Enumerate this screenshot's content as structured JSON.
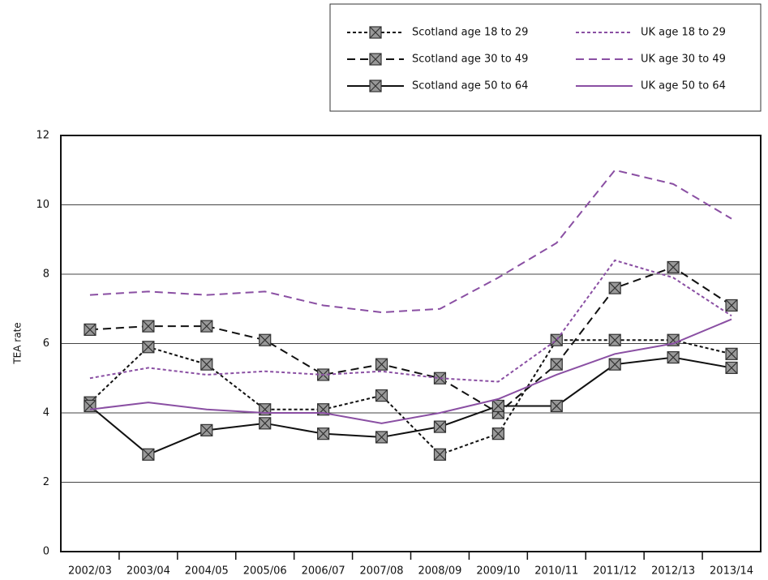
{
  "chart_data": {
    "type": "line",
    "y_label": "TEA rate",
    "categories": [
      "2002/03",
      "2003/04",
      "2004/05",
      "2005/06",
      "2006/07",
      "2007/08",
      "2008/09",
      "2009/10",
      "2010/11",
      "2011/12",
      "2012/13",
      "2013/14"
    ],
    "ylim": [
      0,
      12
    ],
    "yticks": [
      0,
      2,
      4,
      6,
      8,
      10,
      12
    ],
    "grid": true,
    "legend": "top-right",
    "series": [
      {
        "name": "Scotland age 18 to 29",
        "color": "#111111",
        "dash": "short",
        "marker": true,
        "values": [
          4.3,
          5.9,
          5.4,
          4.1,
          4.1,
          4.5,
          2.8,
          3.4,
          6.1,
          6.1,
          6.1,
          5.7
        ]
      },
      {
        "name": "Scotland age 30 to 49",
        "color": "#111111",
        "dash": "long",
        "marker": true,
        "values": [
          6.4,
          6.5,
          6.5,
          6.1,
          5.1,
          5.4,
          5.0,
          4.0,
          5.4,
          7.6,
          8.2,
          7.1
        ]
      },
      {
        "name": "Scotland age 50 to 64",
        "color": "#111111",
        "dash": "solid",
        "marker": true,
        "values": [
          4.2,
          2.8,
          3.5,
          3.7,
          3.4,
          3.3,
          3.6,
          4.2,
          4.2,
          5.4,
          5.6,
          5.3
        ]
      },
      {
        "name": "UK age 18 to 29",
        "color": "#8a4fa3",
        "dash": "short",
        "marker": false,
        "values": [
          5.0,
          5.3,
          5.1,
          5.2,
          5.1,
          5.2,
          5.0,
          4.9,
          6.1,
          8.4,
          7.9,
          6.8
        ]
      },
      {
        "name": "UK age 30 to 49",
        "color": "#8a4fa3",
        "dash": "long",
        "marker": false,
        "values": [
          7.4,
          7.5,
          7.4,
          7.5,
          7.1,
          6.9,
          7.0,
          7.9,
          8.9,
          11.0,
          10.6,
          9.6
        ]
      },
      {
        "name": "UK age 50 to 64",
        "color": "#8a4fa3",
        "dash": "solid",
        "marker": false,
        "values": [
          4.1,
          4.3,
          4.1,
          4.0,
          4.0,
          3.7,
          4.0,
          4.4,
          5.1,
          5.7,
          6.0,
          6.7
        ]
      }
    ]
  }
}
